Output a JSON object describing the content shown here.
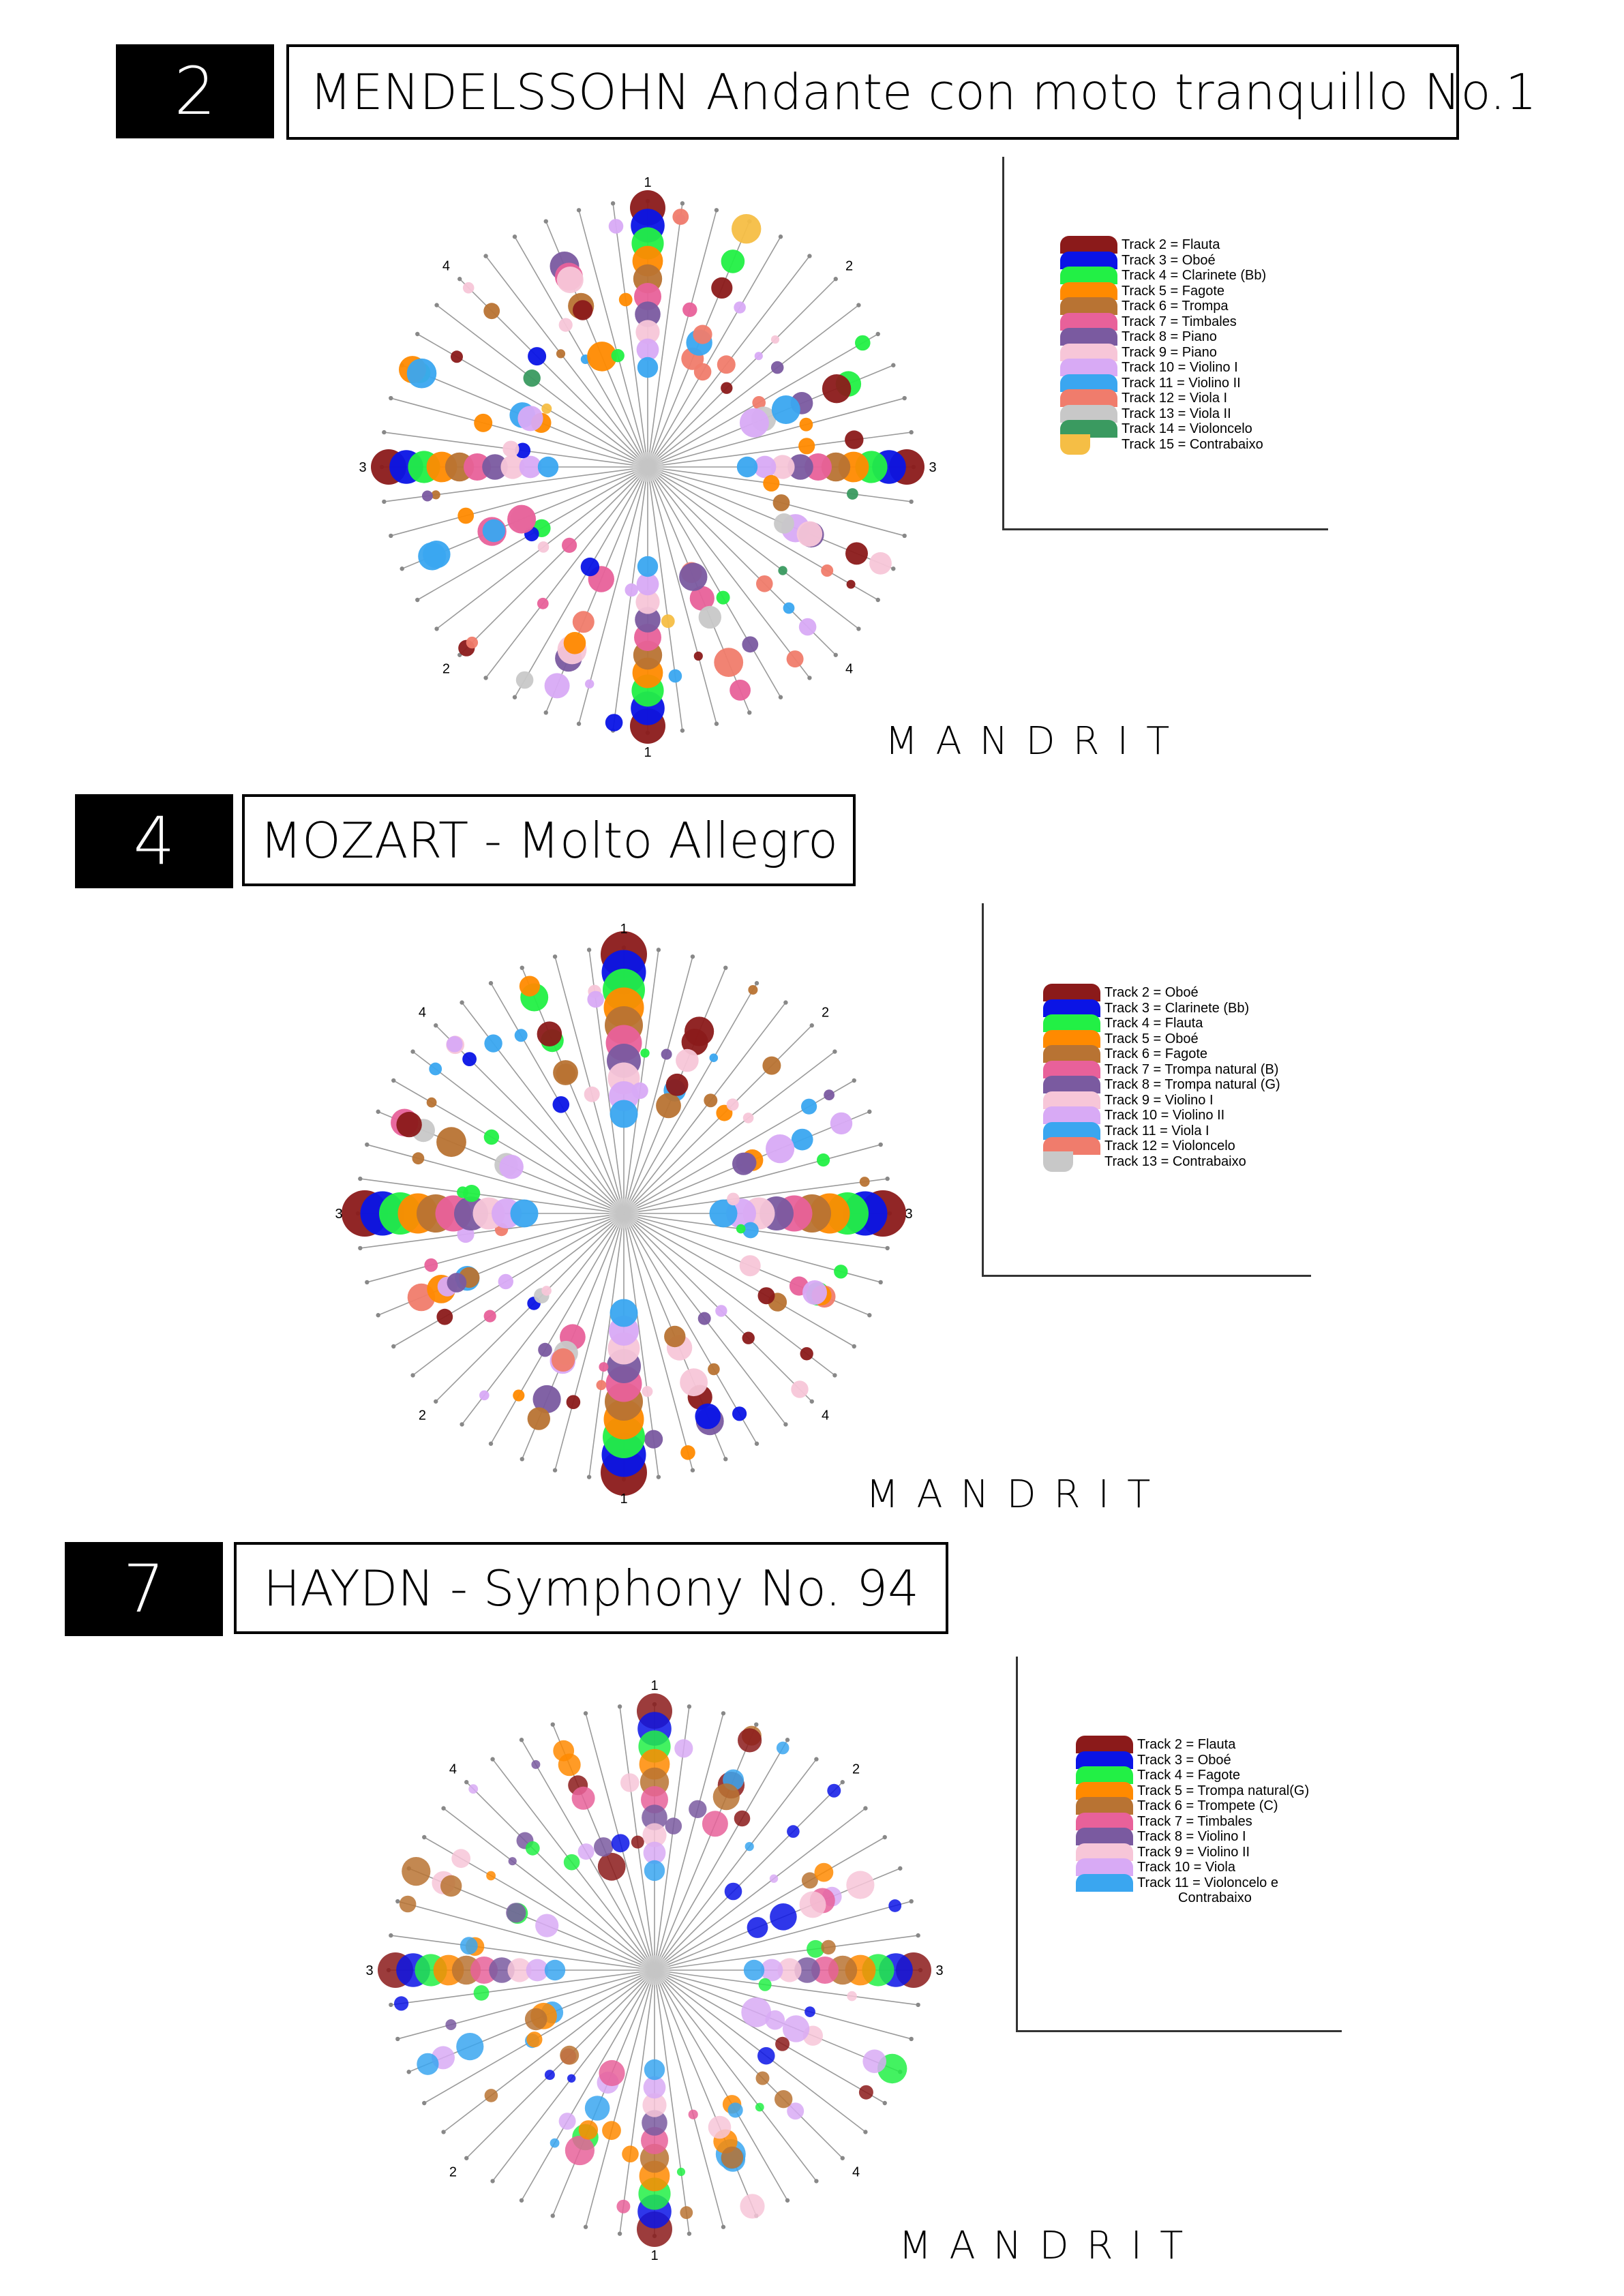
{
  "sections": [
    {
      "number": "2",
      "title": "MENDELSSOHN Andante con moto tranquillo No.1",
      "brand": "MANDRIT",
      "legend": [
        {
          "label": "Track 2 = Flauta",
          "color": "#8B1A1A"
        },
        {
          "label": "Track 3 = Oboé",
          "color": "#0A14E6"
        },
        {
          "label": "Track 4 = Clarinete (Bb)",
          "color": "#22F045"
        },
        {
          "label": "Track 5 = Fagote",
          "color": "#FF8A00"
        },
        {
          "label": "Track 6 = Trompa",
          "color": "#B87333"
        },
        {
          "label": "Track 7 = Timbales",
          "color": "#E8619A"
        },
        {
          "label": "Track 8 = Piano",
          "color": "#7A5AA0"
        },
        {
          "label": "Track 9 = Piano",
          "color": "#F7C6D8"
        },
        {
          "label": "Track 10 = Violino I",
          "color": "#D8AAF5"
        },
        {
          "label": "Track 11 = Violino II",
          "color": "#3AA6F0"
        },
        {
          "label": "Track 12 = Viola I",
          "color": "#F07C6C"
        },
        {
          "label": "Track 13 = Viola II",
          "color": "#C8C8C8"
        },
        {
          "label": "Track 14 = Violoncelo",
          "color": "#3A9A60"
        },
        {
          "label": "Track 15 = Contrabaixo",
          "color": "#F5BE45"
        }
      ],
      "chart_data": {
        "type": "scatter",
        "form": "radial bubble plot (4-fold symmetry)",
        "ring_labels": [
          "1",
          "2",
          "3",
          "4",
          "1",
          "2",
          "3",
          "4"
        ],
        "center": "grey hub",
        "series": [
          {
            "name": "Track 2 = Flauta"
          },
          {
            "name": "Track 3 = Oboé"
          },
          {
            "name": "Track 4 = Clarinete (Bb)"
          },
          {
            "name": "Track 5 = Fagote"
          },
          {
            "name": "Track 6 = Trompa"
          },
          {
            "name": "Track 7 = Timbales"
          },
          {
            "name": "Track 8 = Piano"
          },
          {
            "name": "Track 9 = Piano"
          },
          {
            "name": "Track 10 = Violino I"
          },
          {
            "name": "Track 11 = Violino II"
          },
          {
            "name": "Track 12 = Viola I"
          },
          {
            "name": "Track 13 = Viola II"
          },
          {
            "name": "Track 14 = Violoncelo"
          },
          {
            "name": "Track 15 = Contrabaixo"
          }
        ]
      }
    },
    {
      "number": "4",
      "title": "MOZART - Molto Allegro",
      "brand": "MANDRIT",
      "legend": [
        {
          "label": "Track 2 = Oboé",
          "color": "#8B1A1A"
        },
        {
          "label": "Track 3 = Clarinete (Bb)",
          "color": "#0A14E6"
        },
        {
          "label": "Track 4 = Flauta",
          "color": "#22F045"
        },
        {
          "label": "Track 5 = Oboé",
          "color": "#FF8A00"
        },
        {
          "label": "Track 6 = Fagote",
          "color": "#B87333"
        },
        {
          "label": "Track 7 = Trompa natural (B)",
          "color": "#E8619A"
        },
        {
          "label": "Track 8 = Trompa natural (G)",
          "color": "#7A5AA0"
        },
        {
          "label": "Track 9 = Violino I",
          "color": "#F7C6D8"
        },
        {
          "label": "Track 10 = Violino II",
          "color": "#D8AAF5"
        },
        {
          "label": "Track 11 = Viola I",
          "color": "#3AA6F0"
        },
        {
          "label": "Track 12 = Violoncelo",
          "color": "#F07C6C"
        },
        {
          "label": "Track 13 = Contrabaixo",
          "color": "#C8C8C8"
        }
      ],
      "chart_data": {
        "type": "scatter",
        "form": "radial bubble plot (4-fold symmetry)",
        "ring_labels": [
          "1",
          "2",
          "3",
          "4",
          "1",
          "2",
          "3",
          "4"
        ],
        "center": "grey hub",
        "series": [
          {
            "name": "Track 2 = Oboé"
          },
          {
            "name": "Track 3 = Clarinete (Bb)"
          },
          {
            "name": "Track 4 = Flauta"
          },
          {
            "name": "Track 5 = Oboé"
          },
          {
            "name": "Track 6 = Fagote"
          },
          {
            "name": "Track 7 = Trompa natural (B)"
          },
          {
            "name": "Track 8 = Trompa natural (G)"
          },
          {
            "name": "Track 9 = Violino I"
          },
          {
            "name": "Track 10 = Violino II"
          },
          {
            "name": "Track 11 = Viola I"
          },
          {
            "name": "Track 12 = Violoncelo"
          },
          {
            "name": "Track 13 = Contrabaixo"
          }
        ]
      }
    },
    {
      "number": "7",
      "title": "HAYDN - Symphony No. 94",
      "brand": "MANDRIT",
      "legend": [
        {
          "label": "Track 2 = Flauta",
          "color": "#8B1A1A"
        },
        {
          "label": "Track 3 = Oboé",
          "color": "#0A14E6"
        },
        {
          "label": "Track 4 = Fagote",
          "color": "#22F045"
        },
        {
          "label": "Track 5 = Trompa natural(G)",
          "color": "#FF8A00"
        },
        {
          "label": "Track 6 = Trompete (C)",
          "color": "#B87333"
        },
        {
          "label": "Track 7 = Timbales",
          "color": "#E8619A"
        },
        {
          "label": "Track 8 = Violino I",
          "color": "#7A5AA0"
        },
        {
          "label": "Track 9 = Violino II",
          "color": "#F7C6D8"
        },
        {
          "label": "Track 10 = Viola",
          "color": "#D8AAF5"
        },
        {
          "label": "Track 11 = Violoncelo e",
          "color": "#3AA6F0",
          "extra": "Contrabaixo"
        }
      ],
      "chart_data": {
        "type": "scatter",
        "form": "radial bubble plot (4-fold symmetry)",
        "ring_labels": [
          "1",
          "2",
          "3",
          "4",
          "1",
          "2",
          "3",
          "4"
        ],
        "center": "grey hub",
        "series": [
          {
            "name": "Track 2 = Flauta"
          },
          {
            "name": "Track 3 = Oboé"
          },
          {
            "name": "Track 4 = Fagote"
          },
          {
            "name": "Track 5 = Trompa natural(G)"
          },
          {
            "name": "Track 6 = Trompete (C)"
          },
          {
            "name": "Track 7 = Timbales"
          },
          {
            "name": "Track 8 = Violino I"
          },
          {
            "name": "Track 9 = Violino II"
          },
          {
            "name": "Track 10 = Viola"
          },
          {
            "name": "Track 11 = Violoncelo e Contrabaixo"
          }
        ]
      }
    }
  ]
}
